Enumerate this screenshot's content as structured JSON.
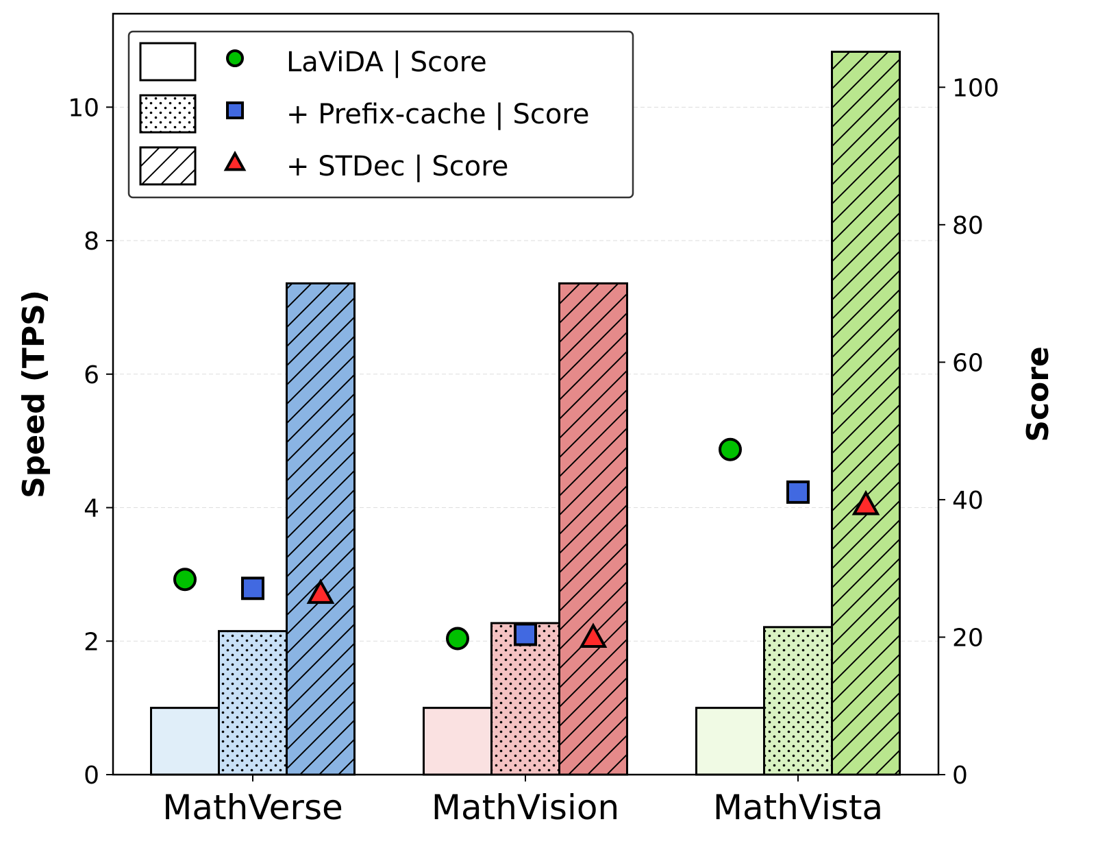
{
  "chart_data": {
    "type": "bar",
    "categories": [
      "MathVerse",
      "MathVision",
      "MathVista"
    ],
    "ylabel": "Speed (TPS)",
    "y2label": "Score",
    "ylim": [
      0,
      11.4
    ],
    "y2lim": [
      0,
      110.7
    ],
    "yticks": [
      0,
      2,
      4,
      6,
      8,
      10
    ],
    "y2ticks": [
      0,
      20,
      40,
      60,
      80,
      100
    ],
    "grid": "horizontal dashed",
    "legend_position": "top-left",
    "bar_series": [
      {
        "name": "LaViDA",
        "pattern": "none",
        "values": [
          1.0,
          1.0,
          1.0
        ]
      },
      {
        "name": "+ Prefix-cache",
        "pattern": "dots",
        "values": [
          2.15,
          2.27,
          2.21
        ]
      },
      {
        "name": "+ STDec",
        "pattern": "hatch",
        "values": [
          7.36,
          7.36,
          10.83
        ]
      }
    ],
    "category_colors": [
      [
        "#e0eef9",
        "#c8e0f6",
        "#8ab4e3"
      ],
      [
        "#fae1e1",
        "#f4c2c2",
        "#e58a8a"
      ],
      [
        "#f0fae4",
        "#d9f2c2",
        "#b9e68e"
      ]
    ],
    "score_series": [
      {
        "name": "LaViDA | Score",
        "marker": "circle",
        "color": "#00c000",
        "values": [
          28.4,
          19.8,
          47.3
        ]
      },
      {
        "name": "+ Prefix-cache | Score",
        "marker": "square",
        "color": "#4169e1",
        "values": [
          27.1,
          20.4,
          41.1
        ]
      },
      {
        "name": "+ STDec | Score",
        "marker": "triangle",
        "color": "#ff2a2a",
        "values": [
          26.4,
          20.0,
          39.3
        ]
      }
    ],
    "legend": [
      "LaViDA | Score",
      "+ Prefix-cache | Score",
      "+ STDec | Score"
    ]
  }
}
